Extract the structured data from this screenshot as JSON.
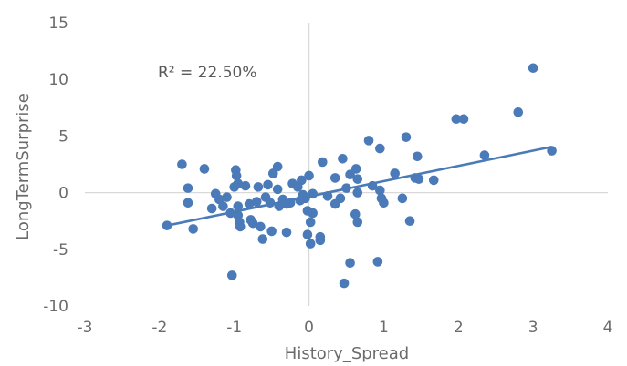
{
  "chart_data": {
    "type": "scatter",
    "title": "",
    "xlabel": "History_Spread",
    "ylabel": "LongTermSurprise",
    "xlim": [
      -3,
      4
    ],
    "ylim": [
      -10,
      15
    ],
    "xticks": [
      -3,
      -2,
      -1,
      0,
      1,
      2,
      3,
      4
    ],
    "yticks": [
      -10,
      -5,
      0,
      5,
      10,
      15
    ],
    "xtick_labels": [
      "-3",
      "-2",
      "-1",
      "0",
      "1",
      "2",
      "3",
      "4"
    ],
    "ytick_labels": [
      "-10",
      "-5",
      "0",
      "5",
      "10",
      "15"
    ],
    "grid": false,
    "legend": "none",
    "annotation": "R² = 22.50%",
    "point_color": "#4a7ab7",
    "trendline_color": "#4a7ab7",
    "axis_color": "#d9d9d9",
    "trendline": {
      "x": [
        -1.9,
        3.25
      ],
      "y": [
        -2.9,
        4.05
      ]
    },
    "points": [
      {
        "x": 3.0,
        "y": 11.0
      },
      {
        "x": 2.8,
        "y": 7.1
      },
      {
        "x": 1.97,
        "y": 6.5
      },
      {
        "x": 2.07,
        "y": 6.5
      },
      {
        "x": 2.35,
        "y": 3.3
      },
      {
        "x": 3.25,
        "y": 3.7
      },
      {
        "x": 1.3,
        "y": 4.9
      },
      {
        "x": 0.8,
        "y": 4.6
      },
      {
        "x": 0.95,
        "y": 3.9
      },
      {
        "x": 1.45,
        "y": 3.2
      },
      {
        "x": 1.42,
        "y": 1.3
      },
      {
        "x": 1.47,
        "y": 1.2
      },
      {
        "x": 1.67,
        "y": 1.1
      },
      {
        "x": 1.15,
        "y": 1.7
      },
      {
        "x": 0.45,
        "y": 3.0
      },
      {
        "x": 0.63,
        "y": 2.1
      },
      {
        "x": 0.55,
        "y": 1.6
      },
      {
        "x": 0.65,
        "y": 1.2
      },
      {
        "x": 0.18,
        "y": 2.7
      },
      {
        "x": 0.35,
        "y": 1.3
      },
      {
        "x": 0.0,
        "y": 1.5
      },
      {
        "x": -0.1,
        "y": 1.1
      },
      {
        "x": 0.5,
        "y": 0.4
      },
      {
        "x": 0.65,
        "y": 0.0
      },
      {
        "x": 0.85,
        "y": 0.6
      },
      {
        "x": 0.95,
        "y": 0.2
      },
      {
        "x": 0.97,
        "y": -0.5
      },
      {
        "x": 1.0,
        "y": -0.9
      },
      {
        "x": 1.25,
        "y": -0.5
      },
      {
        "x": 1.35,
        "y": -2.5
      },
      {
        "x": 0.62,
        "y": -1.9
      },
      {
        "x": 0.65,
        "y": -2.6
      },
      {
        "x": 0.42,
        "y": -0.5
      },
      {
        "x": 0.35,
        "y": -1.0
      },
      {
        "x": 0.25,
        "y": -0.3
      },
      {
        "x": 0.05,
        "y": -0.1
      },
      {
        "x": -0.05,
        "y": -0.5
      },
      {
        "x": -0.02,
        "y": -1.6
      },
      {
        "x": 0.05,
        "y": -1.8
      },
      {
        "x": 0.02,
        "y": -2.6
      },
      {
        "x": 0.15,
        "y": -3.9
      },
      {
        "x": 0.15,
        "y": -4.2
      },
      {
        "x": -0.02,
        "y": -3.7
      },
      {
        "x": 0.02,
        "y": -4.5
      },
      {
        "x": 0.55,
        "y": -6.2
      },
      {
        "x": 0.92,
        "y": -6.1
      },
      {
        "x": 0.47,
        "y": -8.0
      },
      {
        "x": -1.03,
        "y": -7.3
      },
      {
        "x": -1.7,
        "y": 2.5
      },
      {
        "x": -1.4,
        "y": 2.1
      },
      {
        "x": -1.62,
        "y": 0.4
      },
      {
        "x": -1.62,
        "y": -0.9
      },
      {
        "x": -1.9,
        "y": -2.9
      },
      {
        "x": -1.55,
        "y": -3.2
      },
      {
        "x": -1.3,
        "y": -1.4
      },
      {
        "x": -1.25,
        "y": -0.1
      },
      {
        "x": -1.2,
        "y": -0.6
      },
      {
        "x": -1.15,
        "y": -1.2
      },
      {
        "x": -1.1,
        "y": -0.4
      },
      {
        "x": -1.05,
        "y": -1.8
      },
      {
        "x": -1.0,
        "y": 0.5
      },
      {
        "x": -0.98,
        "y": 2.0
      },
      {
        "x": -0.97,
        "y": 1.5
      },
      {
        "x": -0.95,
        "y": 0.8
      },
      {
        "x": -0.95,
        "y": -1.2
      },
      {
        "x": -0.95,
        "y": -2.0
      },
      {
        "x": -0.93,
        "y": -2.6
      },
      {
        "x": -0.92,
        "y": -3.0
      },
      {
        "x": -0.85,
        "y": 0.6
      },
      {
        "x": -0.8,
        "y": -1.0
      },
      {
        "x": -0.78,
        "y": -2.4
      },
      {
        "x": -0.75,
        "y": -2.7
      },
      {
        "x": -0.7,
        "y": -0.8
      },
      {
        "x": -0.68,
        "y": 0.5
      },
      {
        "x": -0.65,
        "y": -3.0
      },
      {
        "x": -0.62,
        "y": -4.1
      },
      {
        "x": -0.58,
        "y": -0.4
      },
      {
        "x": -0.55,
        "y": 0.7
      },
      {
        "x": -0.52,
        "y": -0.9
      },
      {
        "x": -0.5,
        "y": -3.4
      },
      {
        "x": -0.48,
        "y": 1.7
      },
      {
        "x": -0.42,
        "y": 2.3
      },
      {
        "x": -0.42,
        "y": 0.3
      },
      {
        "x": -0.4,
        "y": -1.2
      },
      {
        "x": -0.35,
        "y": -0.6
      },
      {
        "x": -0.3,
        "y": -3.5
      },
      {
        "x": -0.25,
        "y": -0.9
      },
      {
        "x": -0.22,
        "y": 0.8
      },
      {
        "x": -0.15,
        "y": 0.5
      },
      {
        "x": -0.12,
        "y": -0.7
      },
      {
        "x": -0.08,
        "y": -0.2
      },
      {
        "x": -0.3,
        "y": -1.0
      }
    ]
  }
}
